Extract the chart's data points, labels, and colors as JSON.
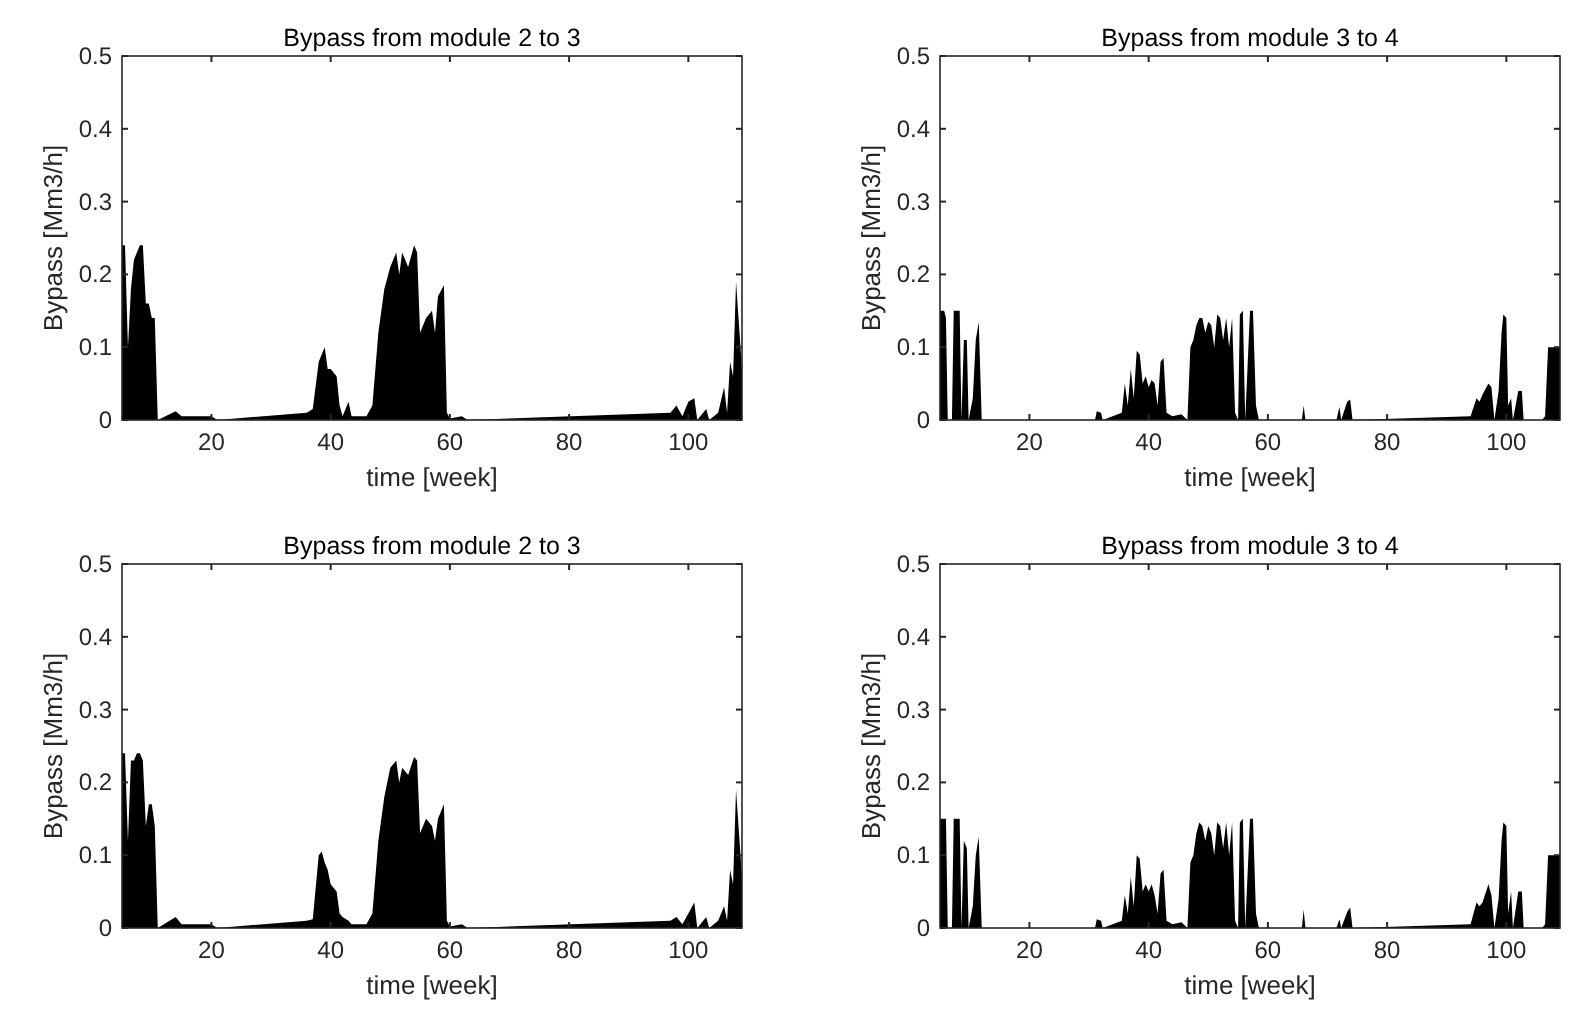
{
  "chart_data": [
    {
      "type": "area",
      "title": "Bypass from module 2 to 3",
      "xlabel": "time [week]",
      "ylabel": "Bypass [Mm3/h]",
      "xlim": [
        5,
        109
      ],
      "ylim": [
        0,
        0.5
      ],
      "xticks": [
        20,
        40,
        60,
        80,
        100
      ],
      "yticks": [
        0,
        0.1,
        0.2,
        0.3,
        0.4,
        0.5
      ],
      "grid": false,
      "series": [
        {
          "color": "#000000",
          "x": [
            5,
            5.5,
            6,
            6.5,
            7,
            7.5,
            8,
            8.5,
            9,
            9.5,
            10,
            10.5,
            11,
            14,
            15,
            20,
            21,
            36,
            37,
            38,
            38.5,
            39,
            39.5,
            40,
            41,
            41.5,
            42,
            43,
            43.5,
            46,
            47,
            48,
            49,
            50,
            51,
            51.5,
            52,
            53,
            54,
            54.5,
            55,
            56,
            57,
            57.5,
            58,
            59,
            59.5,
            60,
            62,
            63,
            97,
            98,
            99,
            100,
            101,
            101.5,
            103,
            103.5,
            105,
            106,
            106.5,
            107,
            107.5,
            108,
            109
          ],
          "values": [
            0.24,
            0.24,
            0.1,
            0.18,
            0.22,
            0.23,
            0.24,
            0.24,
            0.16,
            0.16,
            0.14,
            0.14,
            0,
            0.012,
            0.005,
            0.005,
            0,
            0.01,
            0.015,
            0.08,
            0.09,
            0.1,
            0.07,
            0.07,
            0.06,
            0.02,
            0.005,
            0.025,
            0.005,
            0.005,
            0.02,
            0.12,
            0.18,
            0.21,
            0.23,
            0.2,
            0.23,
            0.21,
            0.24,
            0.23,
            0.12,
            0.14,
            0.15,
            0.12,
            0.17,
            0.185,
            0.01,
            0.002,
            0.005,
            0,
            0.01,
            0.02,
            0.005,
            0.025,
            0.03,
            0,
            0.015,
            0,
            0.01,
            0.045,
            0.01,
            0.08,
            0.06,
            0.19,
            0.07
          ]
        }
      ]
    },
    {
      "type": "area",
      "title": "Bypass from module 3 to 4",
      "xlabel": "time [week]",
      "ylabel": "Bypass [Mm3/h]",
      "xlim": [
        5,
        109
      ],
      "ylim": [
        0,
        0.5
      ],
      "xticks": [
        20,
        40,
        60,
        80,
        100
      ],
      "yticks": [
        0,
        0.1,
        0.2,
        0.3,
        0.4,
        0.5
      ],
      "grid": false,
      "series": [
        {
          "color": "#000000",
          "x": [
            5,
            5.7,
            6,
            6.3,
            7,
            7.3,
            8.3,
            8.6,
            9,
            9.5,
            9.8,
            10.5,
            11,
            11.5,
            12,
            31,
            31.3,
            32,
            32.3,
            35.5,
            36,
            36.5,
            37,
            37.5,
            38,
            38.5,
            39,
            39.5,
            40,
            40.5,
            41,
            41.5,
            42,
            42.5,
            43,
            44,
            45.5,
            46.5,
            47,
            47.5,
            48,
            48.5,
            49,
            49.5,
            50,
            50.5,
            51,
            51.5,
            52,
            52.5,
            53,
            53.5,
            54,
            54.5,
            55,
            55.3,
            55.8,
            56.2,
            57,
            57.5,
            58,
            58.5,
            65.7,
            66,
            66.3,
            71.5,
            72,
            72.3,
            73.3,
            73.8,
            74.2,
            94,
            95,
            95.5,
            96,
            97,
            97.5,
            98,
            98.7,
            99.2,
            99.5,
            100,
            100.3,
            100.8,
            101.1,
            102,
            102.6,
            102.9,
            106,
            106.5,
            107,
            109
          ],
          "values": [
            0.15,
            0.15,
            0.14,
            0,
            0,
            0.15,
            0.15,
            0,
            0.11,
            0.11,
            0,
            0.03,
            0.11,
            0.135,
            0,
            0,
            0.012,
            0.01,
            0,
            0.01,
            0.05,
            0.02,
            0.07,
            0.03,
            0.095,
            0.09,
            0.05,
            0.06,
            0.045,
            0.055,
            0.05,
            0.02,
            0.08,
            0.085,
            0.01,
            0.005,
            0.008,
            0,
            0.1,
            0.11,
            0.13,
            0.14,
            0.14,
            0.12,
            0.135,
            0.13,
            0.1,
            0.145,
            0.14,
            0.11,
            0.14,
            0.1,
            0.14,
            0.01,
            0,
            0.145,
            0.15,
            0,
            0.15,
            0.15,
            0.02,
            0,
            0,
            0.02,
            0,
            0,
            0.018,
            0,
            0.025,
            0.028,
            0,
            0.005,
            0.03,
            0.025,
            0.035,
            0.05,
            0.045,
            0,
            0.04,
            0.12,
            0.145,
            0.14,
            0.02,
            0.03,
            0,
            0.04,
            0.04,
            0,
            0,
            0.005,
            0.1,
            0.1
          ]
        }
      ]
    },
    {
      "type": "area",
      "title": "Bypass from module 2 to 3",
      "xlabel": "time [week]",
      "ylabel": "Bypass [Mm3/h]",
      "xlim": [
        5,
        109
      ],
      "ylim": [
        0,
        0.5
      ],
      "xticks": [
        20,
        40,
        60,
        80,
        100
      ],
      "yticks": [
        0,
        0.1,
        0.2,
        0.3,
        0.4,
        0.5
      ],
      "grid": false,
      "series": [
        {
          "color": "#000000",
          "x": [
            5,
            5.5,
            6,
            6.5,
            7,
            7.5,
            8,
            8.5,
            9,
            9.5,
            10,
            10.5,
            11,
            14,
            15,
            20,
            21,
            36,
            37,
            38,
            38.5,
            39,
            39.5,
            40,
            41,
            41.5,
            42,
            43,
            43.5,
            46,
            47,
            48,
            49,
            50,
            51,
            51.5,
            52,
            53,
            54,
            54.5,
            55,
            56,
            57,
            57.5,
            58,
            59,
            59.5,
            60,
            62,
            63,
            97,
            98,
            99,
            100,
            101,
            101.5,
            103,
            103.5,
            105,
            106,
            106.5,
            107,
            107.5,
            108,
            109
          ],
          "values": [
            0.24,
            0.24,
            0.12,
            0.23,
            0.23,
            0.24,
            0.24,
            0.23,
            0.14,
            0.17,
            0.17,
            0.14,
            0,
            0.015,
            0.005,
            0.005,
            0,
            0.01,
            0.012,
            0.1,
            0.105,
            0.09,
            0.08,
            0.06,
            0.05,
            0.02,
            0.015,
            0.01,
            0.005,
            0.005,
            0.02,
            0.12,
            0.18,
            0.22,
            0.23,
            0.2,
            0.22,
            0.21,
            0.235,
            0.23,
            0.13,
            0.15,
            0.14,
            0.12,
            0.15,
            0.17,
            0.01,
            0.002,
            0.005,
            0,
            0.01,
            0.015,
            0.005,
            0.02,
            0.035,
            0,
            0.015,
            0,
            0.01,
            0.03,
            0.01,
            0.08,
            0.06,
            0.19,
            0.07
          ]
        }
      ]
    },
    {
      "type": "area",
      "title": "Bypass from module 3 to 4",
      "xlabel": "time [week]",
      "ylabel": "Bypass [Mm3/h]",
      "xlim": [
        5,
        109
      ],
      "ylim": [
        0,
        0.5
      ],
      "xticks": [
        20,
        40,
        60,
        80,
        100
      ],
      "yticks": [
        0,
        0.1,
        0.2,
        0.3,
        0.4,
        0.5
      ],
      "grid": false,
      "series": [
        {
          "color": "#000000",
          "x": [
            5,
            5.7,
            6,
            6.3,
            7,
            7.3,
            8.3,
            8.6,
            9,
            9.5,
            9.8,
            10.5,
            11,
            11.5,
            12,
            31,
            31.3,
            32,
            32.3,
            35.5,
            36,
            36.5,
            37,
            37.5,
            38,
            38.5,
            39,
            39.5,
            40,
            40.5,
            41,
            41.5,
            42,
            42.5,
            43,
            44,
            45.5,
            46.5,
            47,
            47.5,
            48,
            48.5,
            49,
            49.5,
            50,
            50.5,
            51,
            51.5,
            52,
            52.5,
            53,
            53.5,
            54,
            54.5,
            55,
            55.3,
            55.8,
            56.2,
            57,
            57.5,
            58,
            58.5,
            65.7,
            66,
            66.3,
            71.5,
            72,
            72.3,
            73.3,
            73.8,
            74.2,
            94,
            95,
            95.5,
            96,
            97,
            97.5,
            98,
            98.7,
            99.2,
            99.5,
            100,
            100.3,
            100.8,
            101.1,
            102,
            102.6,
            102.9,
            106,
            106.5,
            107,
            109
          ],
          "values": [
            0.15,
            0.15,
            0.15,
            0,
            0,
            0.15,
            0.15,
            0,
            0.12,
            0.11,
            0,
            0.03,
            0.1,
            0.125,
            0,
            0,
            0.012,
            0.01,
            0,
            0.01,
            0.045,
            0.02,
            0.07,
            0.03,
            0.1,
            0.095,
            0.05,
            0.06,
            0.05,
            0.06,
            0.045,
            0.02,
            0.075,
            0.08,
            0.01,
            0.005,
            0.008,
            0,
            0.09,
            0.1,
            0.13,
            0.145,
            0.14,
            0.12,
            0.14,
            0.13,
            0.1,
            0.145,
            0.14,
            0.11,
            0.145,
            0.1,
            0.145,
            0.01,
            0,
            0.145,
            0.15,
            0,
            0.15,
            0.15,
            0.02,
            0,
            0,
            0.025,
            0,
            0,
            0.012,
            0,
            0.022,
            0.028,
            0,
            0.005,
            0.035,
            0.03,
            0.035,
            0.06,
            0.045,
            0,
            0.04,
            0.12,
            0.145,
            0.14,
            0.02,
            0.05,
            0,
            0.05,
            0.05,
            0,
            0,
            0.005,
            0.1,
            0.1
          ]
        }
      ]
    }
  ]
}
